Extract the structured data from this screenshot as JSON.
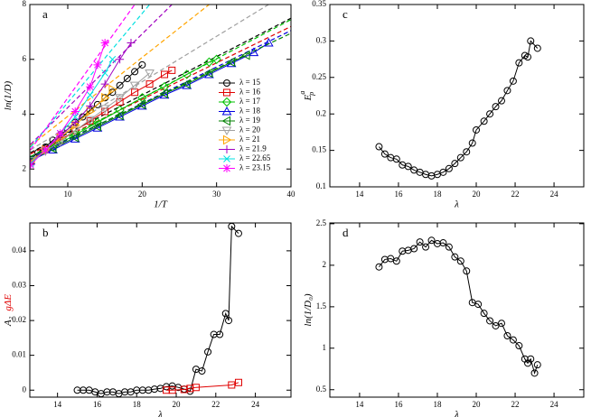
{
  "chart_data": [
    {
      "type": "line",
      "panel": "a",
      "x_label": "1/T",
      "y_label_parts": [
        {
          "text": "ln(1/D)"
        }
      ],
      "xlim": [
        4.9,
        40
      ],
      "ylim": [
        1.35,
        8
      ],
      "xticks": [
        10,
        20,
        30,
        40
      ],
      "yticks": [
        2,
        4,
        6,
        8
      ],
      "legend": "lower right",
      "series": [
        {
          "name": "λ = 15",
          "color": "#000000",
          "marker": "circle",
          "x": [
            5,
            6,
            7,
            8,
            9,
            10,
            11,
            12,
            13,
            14,
            15,
            16,
            17,
            18,
            19,
            20
          ],
          "values": [
            2.35,
            2.6,
            2.8,
            3.05,
            3.25,
            3.45,
            3.7,
            3.9,
            4.15,
            4.35,
            4.6,
            4.8,
            5.05,
            5.3,
            5.55,
            5.8
          ],
          "fit_x": [
            5,
            40
          ],
          "fit_y": [
            2.6,
            7.5
          ]
        },
        {
          "name": "λ = 16",
          "color": "#e00000",
          "marker": "square",
          "x": [
            5,
            7,
            9,
            11,
            13,
            15,
            17,
            19,
            21,
            23,
            24
          ],
          "values": [
            2.3,
            2.7,
            3.05,
            3.4,
            3.75,
            4.1,
            4.45,
            4.8,
            5.1,
            5.45,
            5.6
          ],
          "fit_x": [
            5,
            40
          ],
          "fit_y": [
            2.55,
            7.2
          ]
        },
        {
          "name": "λ = 17",
          "color": "#00c000",
          "marker": "diamond",
          "x": [
            5,
            8,
            11,
            14,
            17,
            20,
            23,
            26,
            29,
            30
          ],
          "values": [
            2.3,
            2.8,
            3.25,
            3.7,
            4.15,
            4.6,
            5.0,
            5.45,
            5.9,
            6.0
          ],
          "fit_x": [
            5,
            40
          ],
          "fit_y": [
            2.45,
            7.45
          ]
        },
        {
          "name": "λ = 18",
          "color": "#0000e0",
          "marker": "triangle-up",
          "x": [
            5,
            8,
            11,
            14,
            17,
            20,
            23,
            26,
            29,
            32,
            35,
            37
          ],
          "values": [
            2.3,
            2.7,
            3.1,
            3.5,
            3.9,
            4.3,
            4.7,
            5.05,
            5.45,
            5.85,
            6.25,
            6.6
          ],
          "fit_x": [
            5,
            40
          ],
          "fit_y": [
            2.4,
            7.05
          ]
        },
        {
          "name": "λ = 19",
          "color": "#008000",
          "marker": "triangle-left",
          "x": [
            5,
            8,
            11,
            14,
            17,
            20,
            23,
            26,
            29,
            32,
            34
          ],
          "values": [
            2.3,
            2.75,
            3.15,
            3.55,
            3.95,
            4.35,
            4.75,
            5.1,
            5.5,
            5.9,
            6.15
          ],
          "fit_x": [
            5,
            40
          ],
          "fit_y": [
            2.45,
            6.95
          ]
        },
        {
          "name": "λ = 20",
          "color": "#a0a0a0",
          "marker": "triangle-down",
          "x": [
            5,
            7,
            9,
            11,
            13,
            15,
            17,
            19,
            21
          ],
          "values": [
            2.3,
            2.65,
            3.0,
            3.4,
            3.8,
            4.2,
            4.6,
            5.05,
            5.5
          ],
          "fit_x": [
            5,
            37
          ],
          "fit_y": [
            2.7,
            8
          ]
        },
        {
          "name": "λ = 21",
          "color": "#ffa500",
          "marker": "triangle-right",
          "x": [
            5,
            7,
            9,
            11,
            13,
            15,
            16
          ],
          "values": [
            2.25,
            2.7,
            3.15,
            3.6,
            4.1,
            4.6,
            4.9
          ],
          "fit_x": [
            5,
            29
          ],
          "fit_y": [
            2.85,
            8
          ]
        },
        {
          "name": "λ = 21.9",
          "color": "#a000c0",
          "marker": "plus",
          "x": [
            5,
            7,
            9,
            11,
            13,
            15,
            17,
            18.5
          ],
          "values": [
            2.2,
            2.7,
            3.2,
            3.7,
            4.3,
            5.1,
            6.0,
            6.6
          ],
          "fit_x": [
            5,
            24
          ],
          "fit_y": [
            2.9,
            8
          ]
        },
        {
          "name": "λ = 22.65",
          "color": "#00e0e0",
          "marker": "cross",
          "x": [
            5,
            7,
            9,
            11,
            13,
            15,
            16
          ],
          "values": [
            2.2,
            2.7,
            3.3,
            3.9,
            4.7,
            5.5,
            6.0
          ],
          "fit_x": [
            5,
            21
          ],
          "fit_y": [
            2.8,
            8
          ]
        },
        {
          "name": "λ = 23.15",
          "color": "#ff00ff",
          "marker": "star",
          "x": [
            5,
            7,
            9,
            11,
            13,
            14,
            15
          ],
          "values": [
            2.15,
            2.7,
            3.3,
            4.1,
            5.0,
            5.8,
            6.6
          ],
          "fit_x": [
            5,
            19
          ],
          "fit_y": [
            2.7,
            8
          ]
        }
      ]
    },
    {
      "type": "line",
      "panel": "c",
      "x_label": "λ",
      "y_label_parts": [
        {
          "text": "E"
        },
        {
          "text": "a",
          "pos": "sup"
        },
        {
          "text": "ρ",
          "pos": "sub"
        }
      ],
      "xlim": [
        12.47,
        25.53
      ],
      "ylim": [
        0.1,
        0.35
      ],
      "xticks": [
        14,
        16,
        18,
        20,
        22,
        24
      ],
      "yticks": [
        0.1,
        0.15,
        0.2,
        0.25,
        0.3,
        0.35
      ],
      "series": [
        {
          "color": "#000000",
          "marker": "circle",
          "x": [
            15,
            15.3,
            15.6,
            15.9,
            16.2,
            16.5,
            16.8,
            17.1,
            17.4,
            17.7,
            18,
            18.3,
            18.6,
            18.9,
            19.2,
            19.5,
            19.8,
            20,
            20.4,
            20.7,
            21,
            21.3,
            21.6,
            21.9,
            22.2,
            22.5,
            22.65,
            22.8,
            23.15
          ],
          "values": [
            0.155,
            0.145,
            0.14,
            0.138,
            0.13,
            0.128,
            0.123,
            0.12,
            0.117,
            0.115,
            0.117,
            0.12,
            0.125,
            0.132,
            0.14,
            0.148,
            0.16,
            0.178,
            0.19,
            0.2,
            0.21,
            0.218,
            0.232,
            0.245,
            0.27,
            0.28,
            0.278,
            0.3,
            0.29
          ]
        }
      ]
    },
    {
      "type": "line",
      "panel": "b",
      "x_label": "λ",
      "y_label_parts": [
        {
          "text": "A₂"
        },
        {
          "text": "gΔE",
          "color": "#e00000"
        }
      ],
      "xlim": [
        12.6,
        25.8
      ],
      "ylim": [
        -0.002,
        0.048
      ],
      "xticks": [
        14,
        16,
        18,
        20,
        22,
        24
      ],
      "yticks": [
        0,
        0.01,
        0.02,
        0.03,
        0.04
      ],
      "series": [
        {
          "color": "#000000",
          "marker": "circle",
          "x": [
            15,
            15.3,
            15.6,
            15.9,
            16.2,
            16.5,
            16.8,
            17.1,
            17.4,
            17.7,
            18,
            18.3,
            18.6,
            18.9,
            19.2,
            19.5,
            19.8,
            20.1,
            20.4,
            20.7,
            21,
            21.3,
            21.6,
            21.9,
            22.2,
            22.5,
            22.65,
            22.8,
            23.15
          ],
          "values": [
            0,
            0,
            0,
            -0.0005,
            -0.001,
            -0.0005,
            -0.0005,
            -0.001,
            -0.0005,
            -0.0005,
            0,
            0,
            0,
            0.0003,
            0.0005,
            0.001,
            0.0012,
            0.0008,
            0.0003,
            -0.0003,
            0.006,
            0.0055,
            0.011,
            0.016,
            0.016,
            0.022,
            0.02,
            0.047,
            0.045
          ]
        },
        {
          "color": "#e00000",
          "marker": "square",
          "x": [
            19.5,
            19.8,
            20.4,
            20.7,
            21,
            22.8,
            23.15
          ],
          "values": [
            0,
            0,
            0.0002,
            0.0005,
            0.0008,
            0.0015,
            0.0022
          ]
        }
      ]
    },
    {
      "type": "line",
      "panel": "d",
      "x_label": "λ",
      "y_label_parts": [
        {
          "text": "ln(1/D₀)"
        }
      ],
      "xlim": [
        12.47,
        25.53
      ],
      "ylim": [
        0.41,
        2.51
      ],
      "xticks": [
        14,
        16,
        18,
        20,
        22,
        24
      ],
      "yticks": [
        0.5,
        1,
        1.5,
        2,
        2.5
      ],
      "series": [
        {
          "color": "#000000",
          "marker": "circle",
          "x": [
            15,
            15.3,
            15.6,
            15.9,
            16.2,
            16.5,
            16.8,
            17.1,
            17.4,
            17.7,
            18,
            18.3,
            18.6,
            18.9,
            19.2,
            19.5,
            19.8,
            20.1,
            20.4,
            20.7,
            21,
            21.3,
            21.6,
            21.9,
            22.2,
            22.5,
            22.65,
            22.8,
            23,
            23.15
          ],
          "values": [
            1.98,
            2.07,
            2.08,
            2.05,
            2.17,
            2.18,
            2.2,
            2.28,
            2.22,
            2.3,
            2.26,
            2.27,
            2.22,
            2.1,
            2.05,
            1.93,
            1.55,
            1.53,
            1.42,
            1.33,
            1.27,
            1.3,
            1.15,
            1.1,
            1.03,
            0.87,
            0.82,
            0.87,
            0.7,
            0.8
          ]
        }
      ]
    }
  ]
}
